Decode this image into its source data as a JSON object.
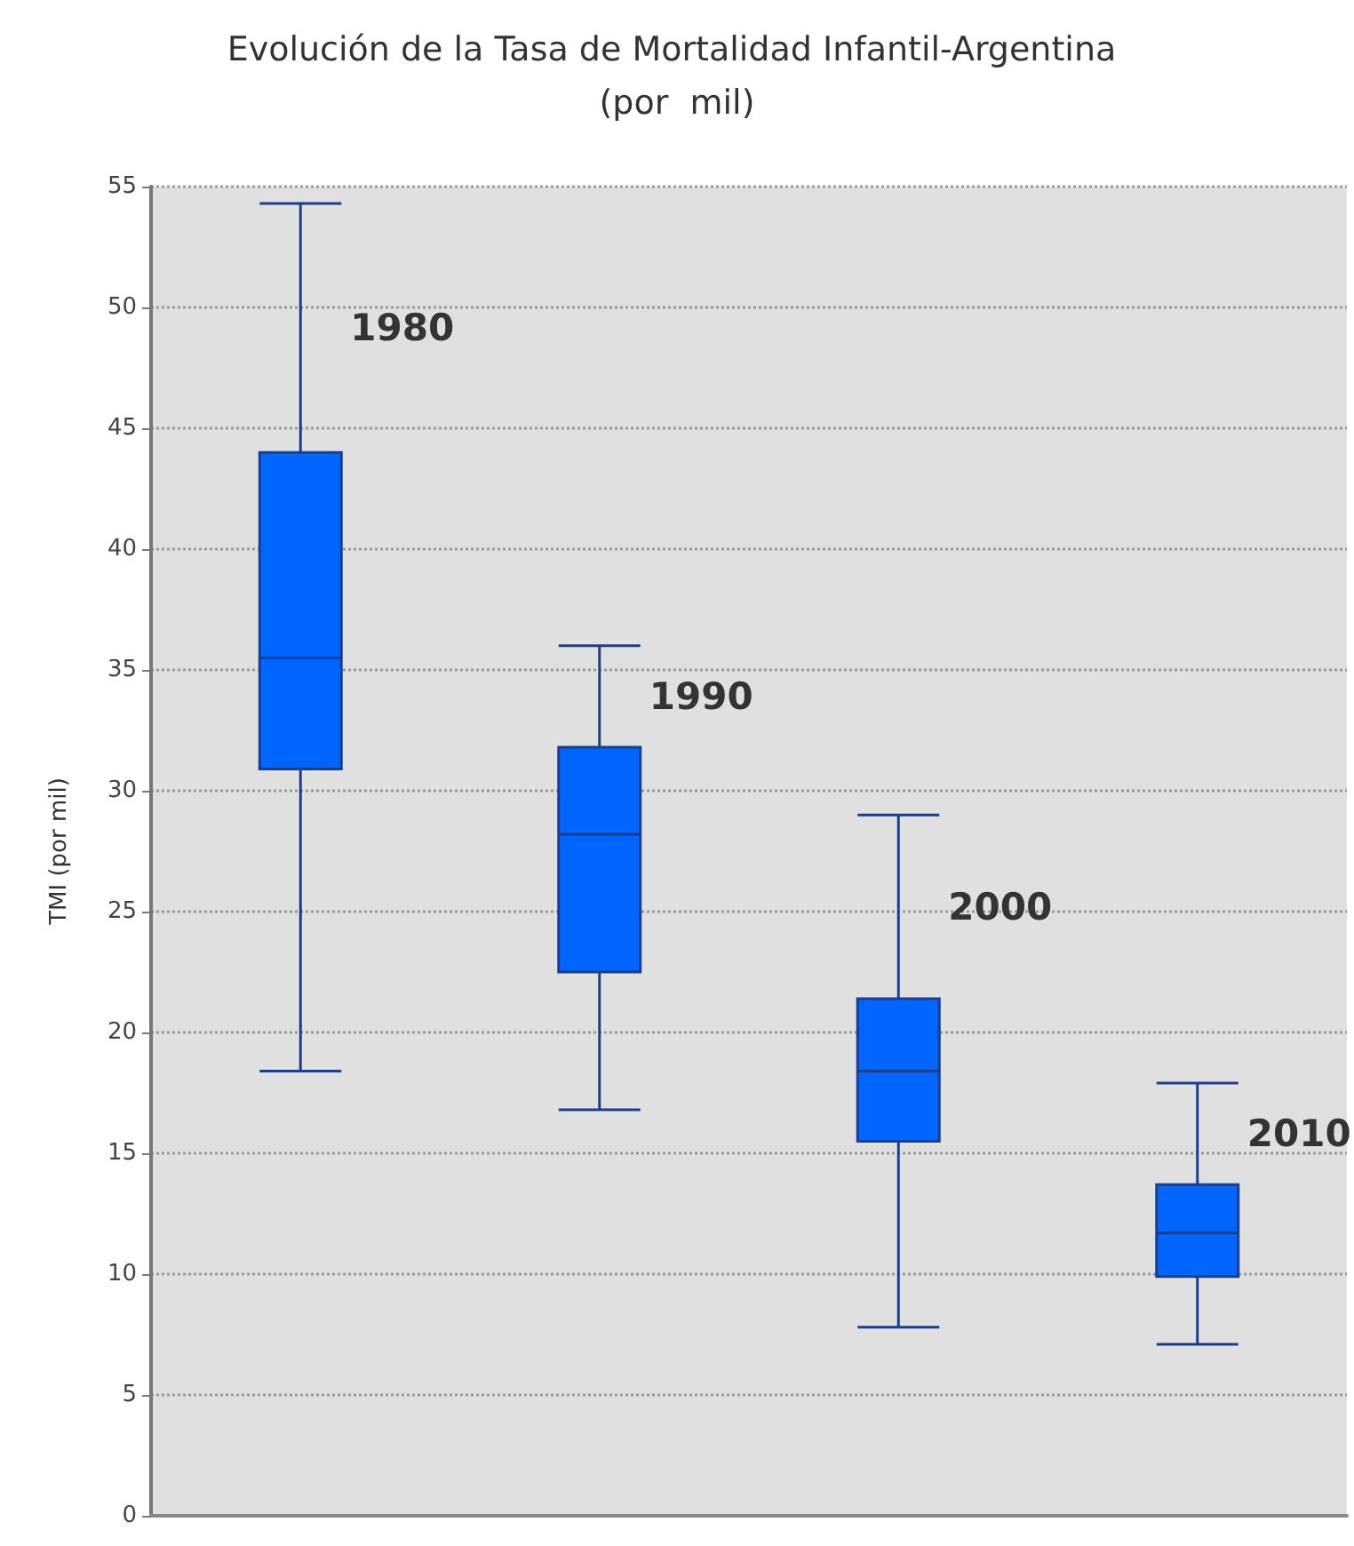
{
  "chart_data": {
    "type": "box",
    "title": "Evolución de la Tasa de Mortalidad Infantil-Argentina (por  mil)",
    "ylabel": "TMI (por mil)",
    "categories": [
      "1980",
      "1990",
      "2000",
      "2010"
    ],
    "series": [
      {
        "color": "#0066ff",
        "boxes": [
          {
            "low": 18.4,
            "q1": 30.9,
            "median": 35.5,
            "q3": 44.0,
            "high": 54.3
          },
          {
            "low": 16.8,
            "q1": 22.5,
            "median": 28.2,
            "q3": 31.8,
            "high": 36.0
          },
          {
            "low": 7.8,
            "q1": 15.5,
            "median": 18.4,
            "q3": 21.4,
            "high": 29.0
          },
          {
            "low": 7.1,
            "q1": 9.9,
            "median": 11.7,
            "q3": 13.7,
            "high": 17.9
          }
        ]
      }
    ],
    "ylim": [
      0,
      55
    ],
    "yticks": [
      0,
      5,
      10,
      15,
      20,
      25,
      30,
      35,
      40,
      45,
      50,
      55
    ],
    "grid": "y"
  }
}
